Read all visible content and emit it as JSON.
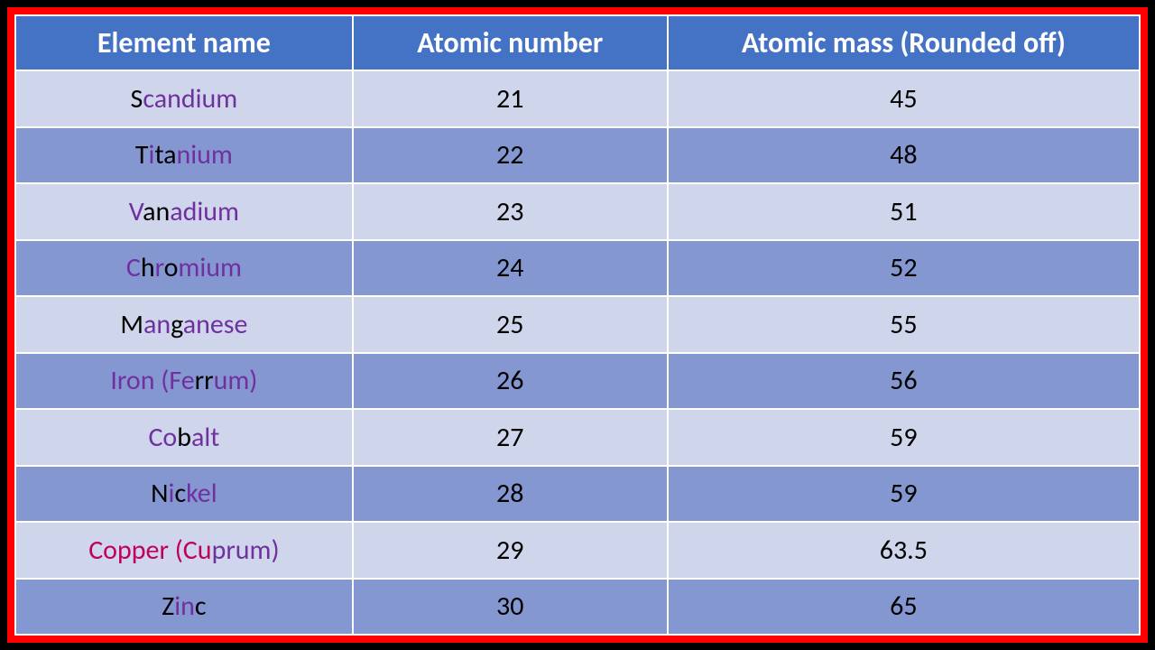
{
  "table": {
    "columns": [
      "Element name",
      "Atomic number",
      "Atomic mass (Rounded off)"
    ],
    "header_bg": "#4472c4",
    "header_fg": "#ffffff",
    "row_bg_odd": "#cfd5ea",
    "row_bg_even": "#8497d0",
    "border_color": "#ffffff",
    "outer_border_color": "#ff0000",
    "purple": "#7030a0",
    "magenta": "#c00060",
    "header_fontsize": 32,
    "cell_fontsize": 30,
    "rows": [
      {
        "name_html": "S<span class='p'>c</span><span class='p'>andium</span>",
        "name_plain": "Scandium",
        "atomic_number": "21",
        "atomic_mass": "45"
      },
      {
        "name_html": "T<span class='p'>i</span>ta<span class='p'>nium</span>",
        "name_plain": "Titanium",
        "atomic_number": "22",
        "atomic_mass": "48"
      },
      {
        "name_html": "<span class='p'>V</span>an<span class='p'>adium</span>",
        "name_plain": "Vanadium",
        "atomic_number": "23",
        "atomic_mass": "51"
      },
      {
        "name_html": "<span class='p'>C</span>h<span class='p'>r</span>o<span class='p'>mium</span>",
        "name_plain": "Chromium",
        "atomic_number": "24",
        "atomic_mass": "52"
      },
      {
        "name_html": "M<span class='p'>an</span>g<span class='p'>anese</span>",
        "name_plain": "Manganese",
        "atomic_number": "25",
        "atomic_mass": "55"
      },
      {
        "name_html": "<span class='p'>Iron (Fe</span>rr<span class='p'>um)</span>",
        "name_plain": "Iron (Ferrum)",
        "atomic_number": "26",
        "atomic_mass": "56"
      },
      {
        "name_html": "<span class='p'>Co</span>b<span class='p'>alt</span>",
        "name_plain": "Cobalt",
        "atomic_number": "27",
        "atomic_mass": "59"
      },
      {
        "name_html": "N<span class='p'>i</span>c<span class='p'>kel</span>",
        "name_plain": "Nickel",
        "atomic_number": "28",
        "atomic_mass": "59"
      },
      {
        "name_html": "<span class='m'>Copper (Cu</span><span class='p'>prum)</span>",
        "name_plain": "Copper (Cuprum)",
        "atomic_number": "29",
        "atomic_mass": "63.5"
      },
      {
        "name_html": "Z<span class='p'>in</span>c",
        "name_plain": "Zinc",
        "atomic_number": "30",
        "atomic_mass": "65"
      }
    ]
  }
}
